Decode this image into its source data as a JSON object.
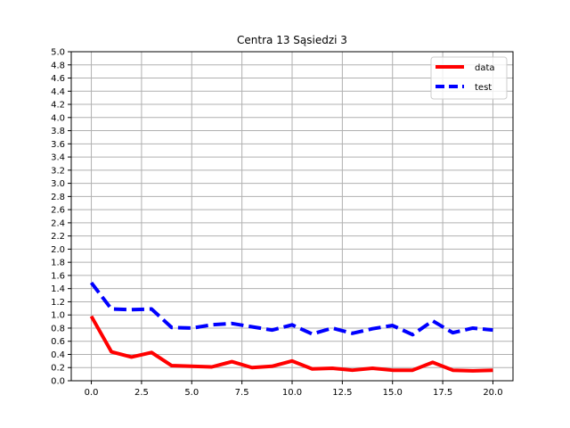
{
  "chart_data": {
    "type": "line",
    "title": "Centra 13 Sąsiedzi 3",
    "xlabel": "",
    "ylabel": "",
    "xlim": [
      -1,
      21
    ],
    "ylim": [
      0,
      5.0
    ],
    "x_ticks": [
      0.0,
      2.5,
      5.0,
      7.5,
      10.0,
      12.5,
      15.0,
      17.5,
      20.0
    ],
    "x_tick_labels": [
      "0.0",
      "2.5",
      "5.0",
      "7.5",
      "10.0",
      "12.5",
      "15.0",
      "17.5",
      "20.0"
    ],
    "y_ticks": [
      0.0,
      0.2,
      0.4,
      0.6,
      0.8,
      1.0,
      1.2,
      1.4,
      1.6,
      1.8,
      2.0,
      2.2,
      2.4,
      2.6,
      2.8,
      3.0,
      3.2,
      3.4,
      3.6,
      3.8,
      4.0,
      4.2,
      4.4,
      4.6,
      4.8,
      5.0
    ],
    "y_tick_labels": [
      "0.0",
      "0.2",
      "0.4",
      "0.6",
      "0.8",
      "1.0",
      "1.2",
      "1.4",
      "1.6",
      "1.8",
      "2.0",
      "2.2",
      "2.4",
      "2.6",
      "2.8",
      "3.0",
      "3.2",
      "3.4",
      "3.6",
      "3.8",
      "4.0",
      "4.2",
      "4.4",
      "4.6",
      "4.8",
      "5.0"
    ],
    "grid": true,
    "legend_position": "top-right",
    "x": [
      0,
      1,
      2,
      3,
      4,
      5,
      6,
      7,
      8,
      9,
      10,
      11,
      12,
      13,
      14,
      15,
      16,
      17,
      18,
      19,
      20
    ],
    "series": [
      {
        "name": "data",
        "color": "#ff0000",
        "style": "solid",
        "values": [
          0.98,
          0.44,
          0.36,
          0.43,
          0.23,
          0.22,
          0.21,
          0.29,
          0.2,
          0.22,
          0.3,
          0.18,
          0.19,
          0.16,
          0.19,
          0.16,
          0.16,
          0.28,
          0.16,
          0.15,
          0.16
        ]
      },
      {
        "name": "test",
        "color": "#0000ff",
        "style": "dashed",
        "values": [
          1.49,
          1.09,
          1.08,
          1.09,
          0.81,
          0.8,
          0.85,
          0.87,
          0.82,
          0.77,
          0.85,
          0.71,
          0.8,
          0.72,
          0.79,
          0.84,
          0.7,
          0.91,
          0.73,
          0.8,
          0.77
        ]
      }
    ]
  }
}
